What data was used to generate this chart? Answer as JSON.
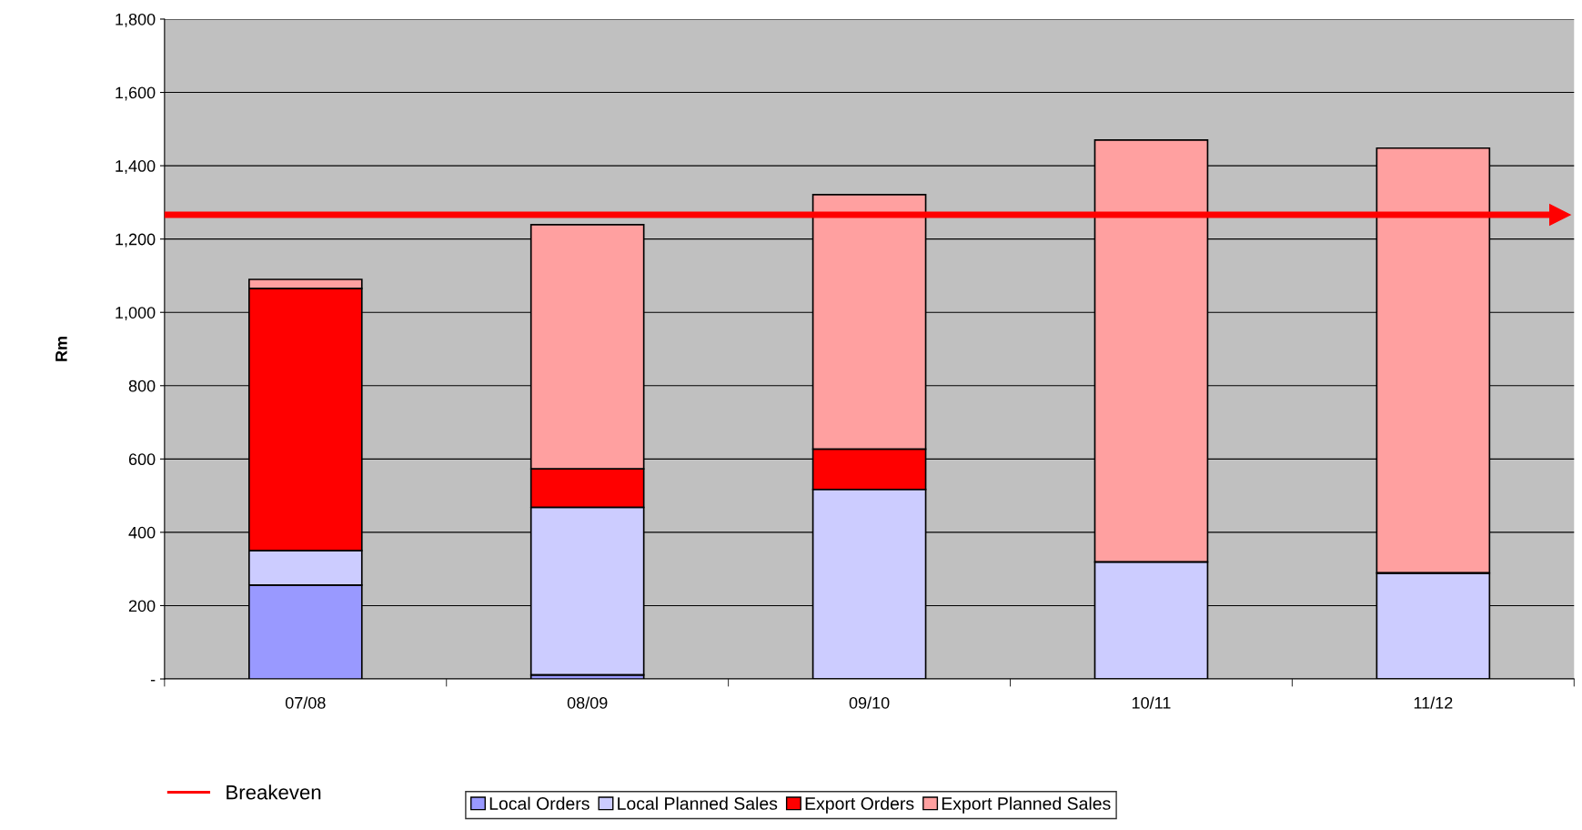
{
  "chart_data": {
    "type": "bar",
    "stacked": true,
    "ylabel": "Rm",
    "categories": [
      "07/08",
      "08/09",
      "09/10",
      "10/11",
      "11/12"
    ],
    "series": [
      {
        "name": "Local Orders",
        "color": "#9999ff",
        "values": [
          256,
          11,
          0,
          0,
          0
        ]
      },
      {
        "name": "Local Planned Sales",
        "color": "#ccccff",
        "values": [
          94,
          457,
          517,
          319,
          289
        ]
      },
      {
        "name": "Export Orders",
        "color": "#ff0000",
        "values": [
          715,
          105,
          110,
          0,
          0
        ]
      },
      {
        "name": "Export Planned Sales",
        "color": "#ffa0a0",
        "values": [
          25,
          666,
          694,
          1151,
          1159
        ]
      }
    ],
    "ylim": [
      0,
      1800
    ],
    "yticks": [
      {
        "value": 0,
        "label": "-"
      },
      {
        "value": 200,
        "label": "200"
      },
      {
        "value": 400,
        "label": "400"
      },
      {
        "value": 600,
        "label": "600"
      },
      {
        "value": 800,
        "label": "800"
      },
      {
        "value": 1000,
        "label": "1,000"
      },
      {
        "value": 1200,
        "label": "1,200"
      },
      {
        "value": 1400,
        "label": "1,400"
      },
      {
        "value": 1600,
        "label": "1,600"
      },
      {
        "value": 1800,
        "label": "1,800"
      }
    ],
    "ref_lines": [
      {
        "axis": "y",
        "value": 1266,
        "label": "Breakeven",
        "color": "#ff0000"
      }
    ],
    "grid": "y",
    "legend": "bottom"
  }
}
